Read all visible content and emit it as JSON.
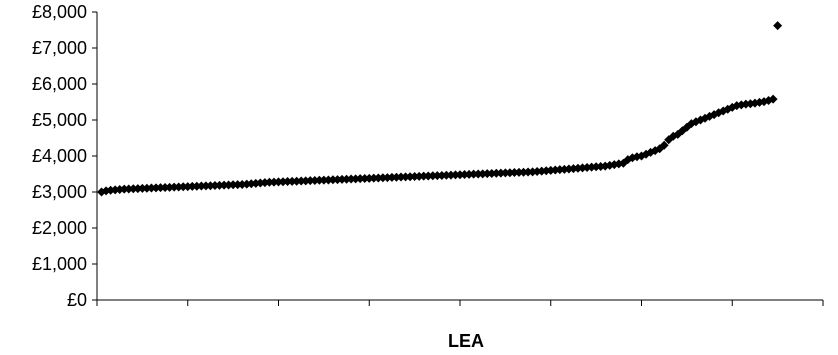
{
  "chart_data": {
    "type": "scatter",
    "title": "",
    "xlabel": "LEA",
    "ylabel": "",
    "ylim": [
      0,
      8000
    ],
    "yticks": [
      0,
      1000,
      2000,
      3000,
      4000,
      5000,
      6000,
      7000,
      8000
    ],
    "ytick_labels": [
      "£0",
      "£1,000",
      "£2,000",
      "£3,000",
      "£4,000",
      "£5,000",
      "£6,000",
      "£7,000",
      "£8,000"
    ],
    "xlim": [
      0,
      160
    ],
    "x_tick_count": 9,
    "grid": false,
    "legend": "none",
    "marker_shape": "diamond",
    "marker_color": "#000000",
    "x": [
      1,
      2,
      3,
      4,
      5,
      6,
      7,
      8,
      9,
      10,
      11,
      12,
      13,
      14,
      15,
      16,
      17,
      18,
      19,
      20,
      21,
      22,
      23,
      24,
      25,
      26,
      27,
      28,
      29,
      30,
      31,
      32,
      33,
      34,
      35,
      36,
      37,
      38,
      39,
      40,
      41,
      42,
      43,
      44,
      45,
      46,
      47,
      48,
      49,
      50,
      51,
      52,
      53,
      54,
      55,
      56,
      57,
      58,
      59,
      60,
      61,
      62,
      63,
      64,
      65,
      66,
      67,
      68,
      69,
      70,
      71,
      72,
      73,
      74,
      75,
      76,
      77,
      78,
      79,
      80,
      81,
      82,
      83,
      84,
      85,
      86,
      87,
      88,
      89,
      90,
      91,
      92,
      93,
      94,
      95,
      96,
      97,
      98,
      99,
      100,
      101,
      102,
      103,
      104,
      105,
      106,
      107,
      108,
      109,
      110,
      111,
      112,
      113,
      114,
      115,
      116,
      117,
      118,
      119,
      120,
      121,
      122,
      123,
      124,
      125,
      126,
      127,
      128,
      129,
      130,
      131,
      132,
      133,
      134,
      135,
      136,
      137,
      138,
      139,
      140,
      141,
      142,
      143,
      144,
      145,
      146,
      147,
      148,
      149,
      150
    ],
    "y": [
      3000,
      3030,
      3050,
      3060,
      3070,
      3080,
      3085,
      3090,
      3095,
      3100,
      3105,
      3110,
      3115,
      3120,
      3125,
      3130,
      3135,
      3140,
      3145,
      3150,
      3155,
      3160,
      3165,
      3170,
      3175,
      3180,
      3185,
      3190,
      3195,
      3200,
      3205,
      3210,
      3220,
      3230,
      3240,
      3250,
      3260,
      3270,
      3275,
      3280,
      3285,
      3290,
      3295,
      3300,
      3305,
      3310,
      3315,
      3320,
      3325,
      3330,
      3335,
      3340,
      3345,
      3350,
      3355,
      3360,
      3365,
      3370,
      3375,
      3380,
      3385,
      3390,
      3395,
      3400,
      3405,
      3410,
      3415,
      3420,
      3425,
      3430,
      3435,
      3440,
      3445,
      3450,
      3455,
      3460,
      3465,
      3470,
      3475,
      3480,
      3485,
      3490,
      3495,
      3500,
      3505,
      3510,
      3515,
      3520,
      3525,
      3530,
      3535,
      3540,
      3545,
      3550,
      3555,
      3560,
      3570,
      3580,
      3590,
      3600,
      3610,
      3620,
      3630,
      3640,
      3650,
      3660,
      3670,
      3680,
      3690,
      3700,
      3710,
      3720,
      3740,
      3760,
      3780,
      3800,
      3900,
      3950,
      3980,
      4000,
      4050,
      4100,
      4150,
      4200,
      4300,
      4450,
      4550,
      4600,
      4700,
      4800,
      4900,
      4950,
      5000,
      5050,
      5100,
      5150,
      5200,
      5250,
      5300,
      5350,
      5400,
      5420,
      5440,
      5450,
      5470,
      5490,
      5510,
      5540,
      5580,
      7620
    ]
  }
}
